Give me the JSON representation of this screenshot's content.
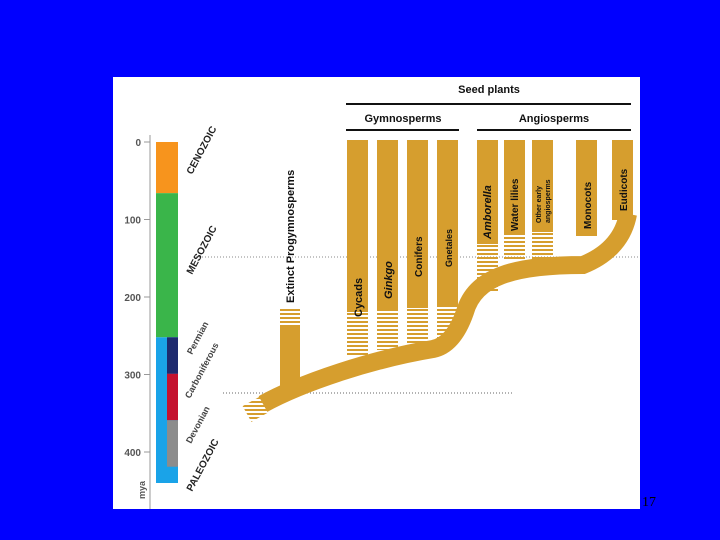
{
  "slide": {
    "page_number": "17"
  },
  "figure": {
    "header": {
      "seed_plants": "Seed plants",
      "gymnosperms": "Gymnosperms",
      "angiosperms": "Angiosperms"
    },
    "time_axis": {
      "unit": "mya",
      "ticks": [
        {
          "value": 0,
          "label": "0"
        },
        {
          "value": 100,
          "label": "100"
        },
        {
          "value": 200,
          "label": "200"
        },
        {
          "value": 300,
          "label": "300"
        },
        {
          "value": 400,
          "label": "400"
        }
      ]
    },
    "eras": [
      {
        "name": "CENOZOIC",
        "start_mya": 0,
        "end_mya": 66,
        "color": "#f7941d"
      },
      {
        "name": "MESOZOIC",
        "start_mya": 66,
        "end_mya": 252,
        "color": "#3ab54a"
      },
      {
        "name": "PALEOZOIC",
        "start_mya": 252,
        "end_mya": 440,
        "color": "#1aa3e8"
      }
    ],
    "periods": [
      {
        "name": "Permian",
        "start_mya": 252,
        "end_mya": 299,
        "color": "#1e2a6e"
      },
      {
        "name": "Carboniferous",
        "start_mya": 299,
        "end_mya": 359,
        "color": "#c4122f"
      },
      {
        "name": "Devonian",
        "start_mya": 359,
        "end_mya": 419,
        "color": "#8c8c8c"
      }
    ],
    "branch_color": "#d69e2e",
    "lineages": {
      "extinct": "Extinct Progymnosperms",
      "cycads": "Cycads",
      "ginkgo": "Ginkgo",
      "conifers": "Conifers",
      "gnetales": "Gnetales",
      "amborella": "Amborella",
      "water_lilies": "Water lilies",
      "other_early_1": "Other early",
      "other_early_2": "angiosperms",
      "monocots": "Monocots",
      "eudicots": "Eudicots"
    }
  }
}
